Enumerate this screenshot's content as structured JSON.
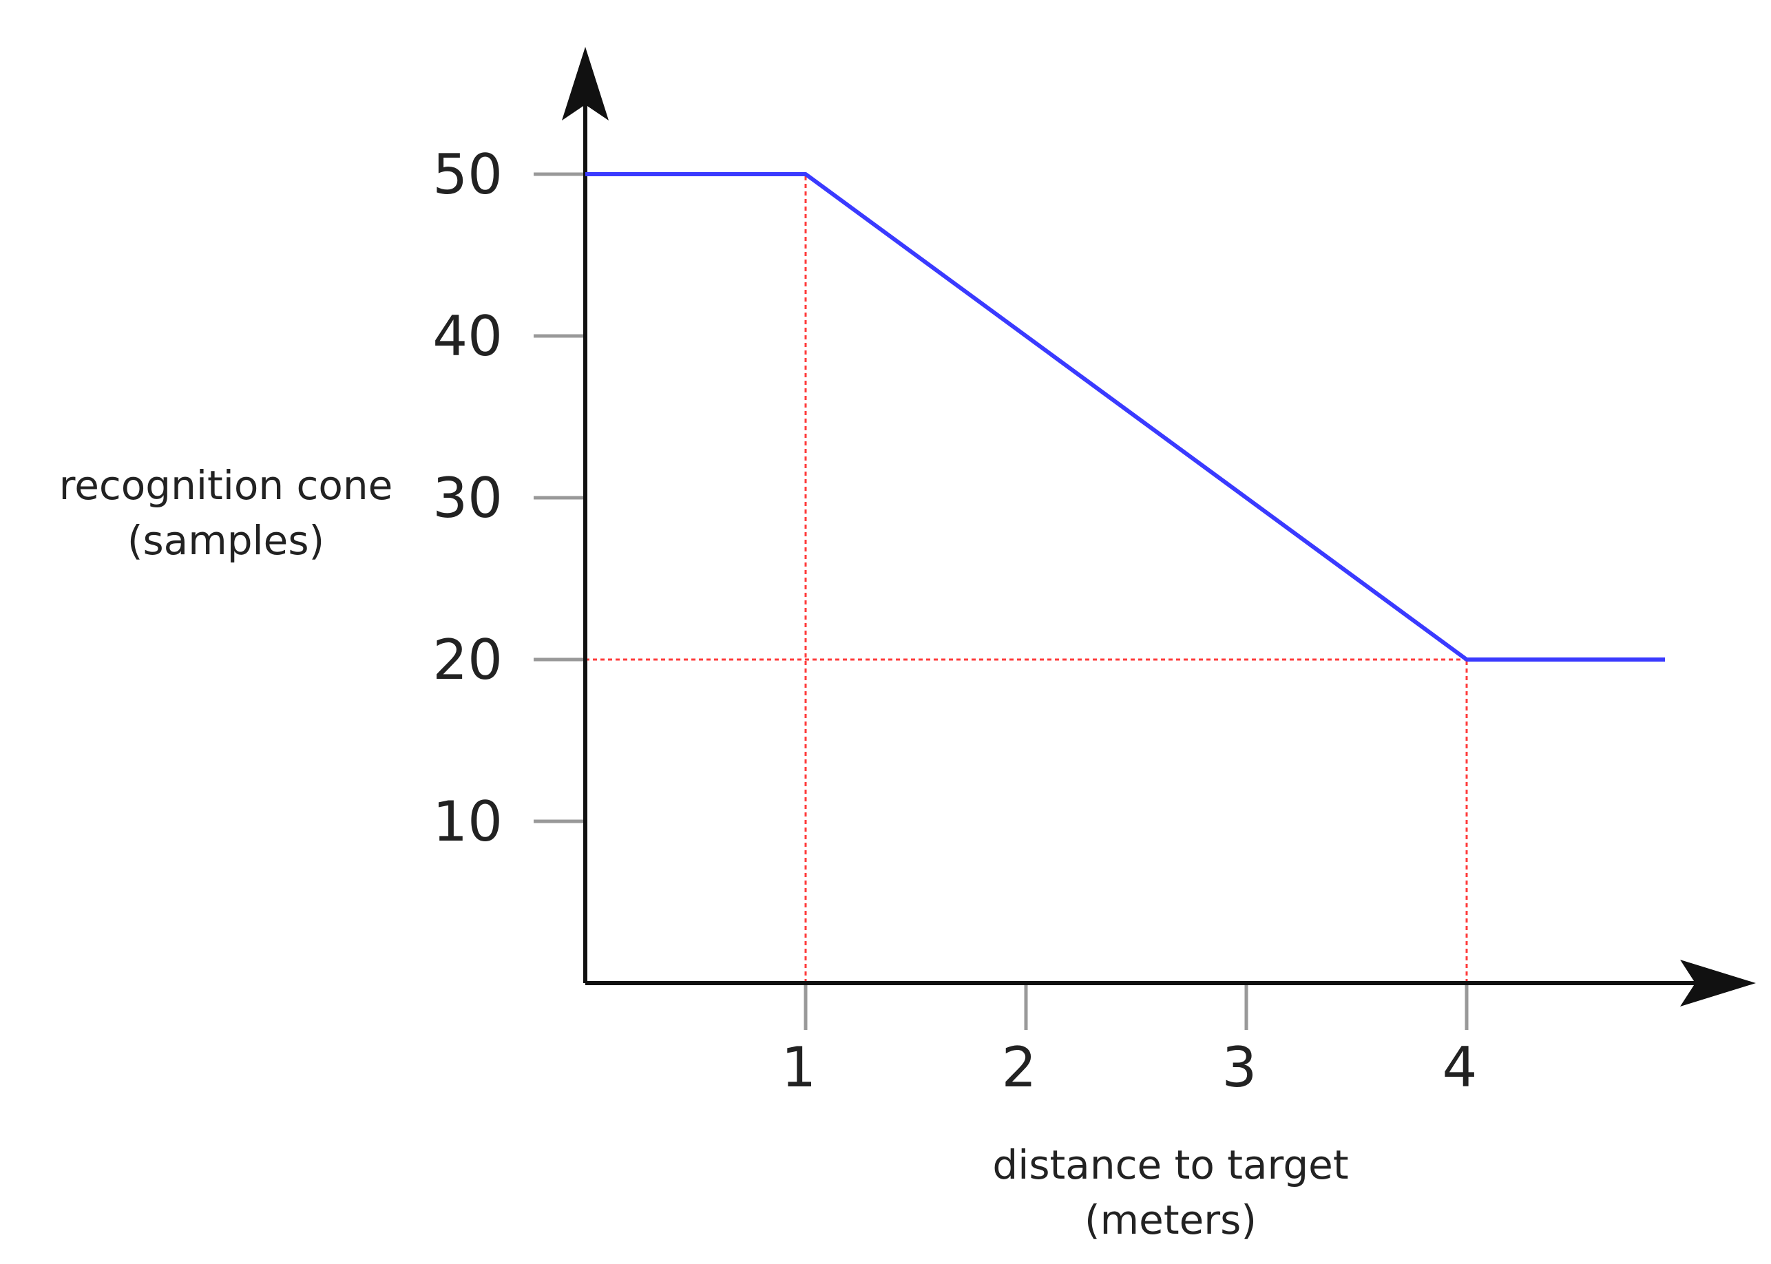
{
  "chart_data": {
    "type": "line",
    "xlabel_lines": [
      "distance to target",
      "(meters)"
    ],
    "ylabel_lines": [
      "recognition cone",
      "(samples)"
    ],
    "x_ticks": [
      1,
      2,
      3,
      4
    ],
    "y_ticks": [
      10,
      20,
      30,
      40,
      50
    ],
    "xlim": [
      0,
      4.9
    ],
    "ylim": [
      0,
      50
    ],
    "series": [
      {
        "x": [
          0,
          1,
          4,
          4.9
        ],
        "y": [
          50,
          50,
          20,
          20
        ]
      }
    ],
    "reference_lines": [
      {
        "x": 1,
        "y_from": 0,
        "y_to": 50
      },
      {
        "x": 4,
        "y_from": 0,
        "y_to": 20
      },
      {
        "y": 20,
        "x_from": 0,
        "x_to": 4
      }
    ],
    "grid": false,
    "legend": false,
    "colors": {
      "line": "#3a3aff",
      "reference": "#ff3b3b",
      "axis": "#111111",
      "tick": "#999999"
    }
  }
}
